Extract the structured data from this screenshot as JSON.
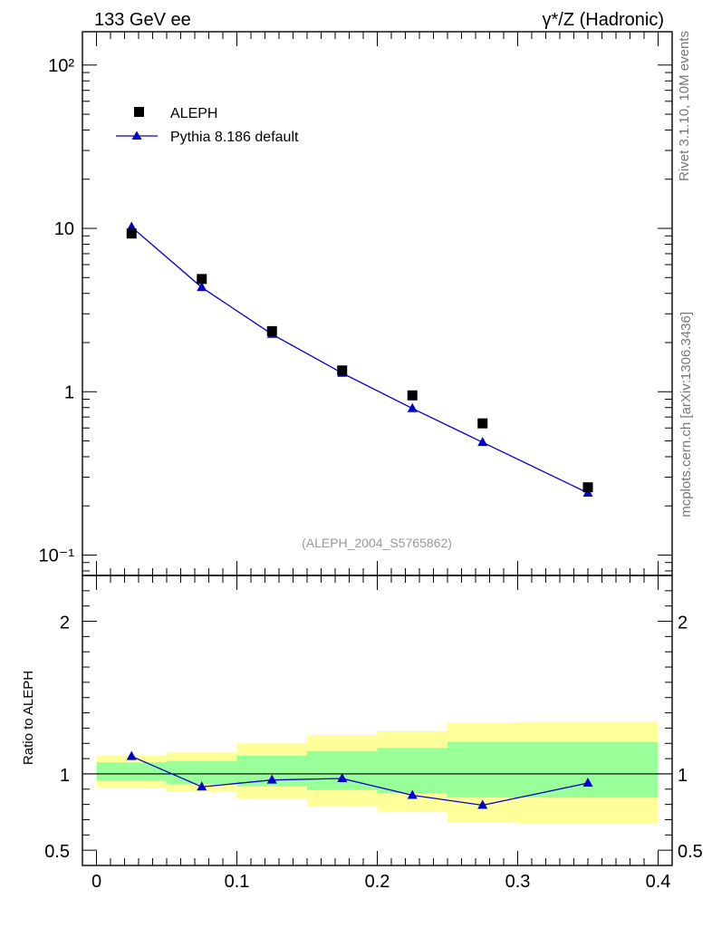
{
  "header": {
    "left_title": "133 GeV ee",
    "right_title": "γ*/Z (Hadronic)"
  },
  "side_text": {
    "rivet": "Rivet 3.1.10,  10M events",
    "mcplots": "mcplots.cern.ch [arXiv:1306.3436]"
  },
  "analysis_label": "(ALEPH_2004_S5765862)",
  "legend": {
    "data_label": "ALEPH",
    "mc_label": "Pythia 8.186 default"
  },
  "colors": {
    "data": "#000000",
    "mc": "#0000cc",
    "band_inner": "#99ff99",
    "band_outer": "#ffff99"
  },
  "chart_data": [
    {
      "type": "scatter",
      "title": "γ*/Z (Hadronic)",
      "scale": "log",
      "xlim": [
        -0.01,
        0.41
      ],
      "ylim": [
        0.075,
        160
      ],
      "yticks_major": [
        0.1,
        1,
        10,
        100
      ],
      "ytick_labels": [
        "10⁻¹",
        "1",
        "10",
        "10²"
      ],
      "series": [
        {
          "name": "ALEPH",
          "marker": "square",
          "x": [
            0.025,
            0.075,
            0.125,
            0.175,
            0.225,
            0.275,
            0.35
          ],
          "values": [
            9.3,
            4.9,
            2.35,
            1.35,
            0.95,
            0.64,
            0.26
          ]
        },
        {
          "name": "Pythia 8.186 default",
          "marker": "triangle",
          "x": [
            0.025,
            0.075,
            0.125,
            0.175,
            0.225,
            0.275,
            0.35
          ],
          "values": [
            10.2,
            4.35,
            2.25,
            1.3,
            0.79,
            0.49,
            0.24
          ]
        }
      ]
    },
    {
      "type": "line",
      "ylabel": "Ratio to ALEPH",
      "xlim": [
        -0.01,
        0.41
      ],
      "ylim": [
        0.4,
        2.3
      ],
      "xticks": [
        0,
        0.1,
        0.2,
        0.3,
        0.4
      ],
      "xtick_labels": [
        "0",
        "0.1",
        "0.2",
        "0.3",
        "0.4"
      ],
      "yticks": [
        0.5,
        1,
        2
      ],
      "ytick_labels": [
        "0.5",
        "1",
        "2"
      ],
      "bins": [
        {
          "lo": 0.0,
          "hi": 0.05,
          "inner": [
            0.955,
            1.075
          ],
          "outer": [
            0.91,
            1.12
          ]
        },
        {
          "lo": 0.05,
          "hi": 0.1,
          "inner": [
            0.935,
            1.085
          ],
          "outer": [
            0.885,
            1.14
          ]
        },
        {
          "lo": 0.1,
          "hi": 0.15,
          "inner": [
            0.92,
            1.12
          ],
          "outer": [
            0.84,
            1.2
          ]
        },
        {
          "lo": 0.15,
          "hi": 0.2,
          "inner": [
            0.895,
            1.15
          ],
          "outer": [
            0.785,
            1.255
          ]
        },
        {
          "lo": 0.2,
          "hi": 0.25,
          "inner": [
            0.875,
            1.17
          ],
          "outer": [
            0.755,
            1.28
          ]
        },
        {
          "lo": 0.25,
          "hi": 0.3,
          "inner": [
            0.845,
            1.21
          ],
          "outer": [
            0.68,
            1.335
          ]
        },
        {
          "lo": 0.3,
          "hi": 0.4,
          "inner": [
            0.845,
            1.21
          ],
          "outer": [
            0.675,
            1.34
          ]
        }
      ],
      "series": [
        {
          "name": "Pythia 8.186 default / ALEPH",
          "x": [
            0.025,
            0.075,
            0.125,
            0.175,
            0.225,
            0.275,
            0.35
          ],
          "values": [
            1.115,
            0.915,
            0.96,
            0.97,
            0.86,
            0.795,
            0.94
          ]
        }
      ]
    }
  ]
}
